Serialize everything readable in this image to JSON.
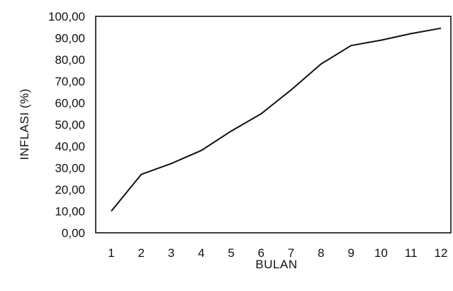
{
  "chart_data": {
    "type": "line",
    "title": "",
    "xlabel": "BULAN",
    "ylabel": "INFLASI (%)",
    "x": [
      1,
      2,
      3,
      4,
      5,
      6,
      7,
      8,
      9,
      10,
      11,
      12
    ],
    "x_tick_labels": [
      "1",
      "2",
      "3",
      "4",
      "5",
      "6",
      "7",
      "8",
      "9",
      "10",
      "11",
      "12"
    ],
    "y_tick_labels": [
      "0,00",
      "10,00",
      "20,00",
      "30,00",
      "40,00",
      "50,00",
      "60,00",
      "70,00",
      "80,00",
      "90,00",
      "100,00"
    ],
    "ylim": [
      0,
      100
    ],
    "grid": false,
    "legend": "none",
    "series": [
      {
        "values": [
          10.0,
          27.0,
          32.0,
          38.0,
          47.0,
          55.0,
          66.0,
          78.0,
          86.5,
          89.0,
          92.0,
          94.5
        ],
        "color": "#111111"
      }
    ]
  }
}
